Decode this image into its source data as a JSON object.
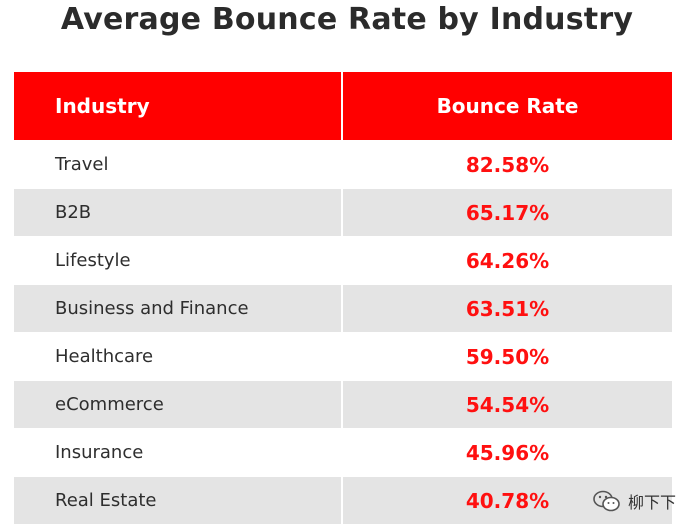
{
  "title": "Average Bounce Rate by Industry",
  "table": {
    "headers": [
      "Industry",
      "Bounce Rate"
    ],
    "rows": [
      {
        "industry": "Travel",
        "rate": "82.58%"
      },
      {
        "industry": "B2B",
        "rate": "65.17%"
      },
      {
        "industry": "Lifestyle",
        "rate": "64.26%"
      },
      {
        "industry": "Business and Finance",
        "rate": "63.51%"
      },
      {
        "industry": "Healthcare",
        "rate": "59.50%"
      },
      {
        "industry": "eCommerce",
        "rate": "54.54%"
      },
      {
        "industry": "Insurance",
        "rate": "45.96%"
      },
      {
        "industry": "Real Estate",
        "rate": "40.78%"
      }
    ]
  },
  "chart_data": {
    "type": "table",
    "title": "Average Bounce Rate by Industry",
    "columns": [
      "Industry",
      "Bounce Rate"
    ],
    "categories": [
      "Travel",
      "B2B",
      "Lifestyle",
      "Business and Finance",
      "Healthcare",
      "eCommerce",
      "Insurance",
      "Real Estate"
    ],
    "values": [
      82.58,
      65.17,
      64.26,
      63.51,
      59.5,
      54.54,
      45.96,
      40.78
    ],
    "unit": "%"
  },
  "colors": {
    "header_bg": "#ff0000",
    "header_text": "#ffffff",
    "rate_text": "#ff1010",
    "stripe": "#e4e4e4"
  },
  "watermark": {
    "text": "柳下下",
    "icon": "wechat-icon"
  }
}
